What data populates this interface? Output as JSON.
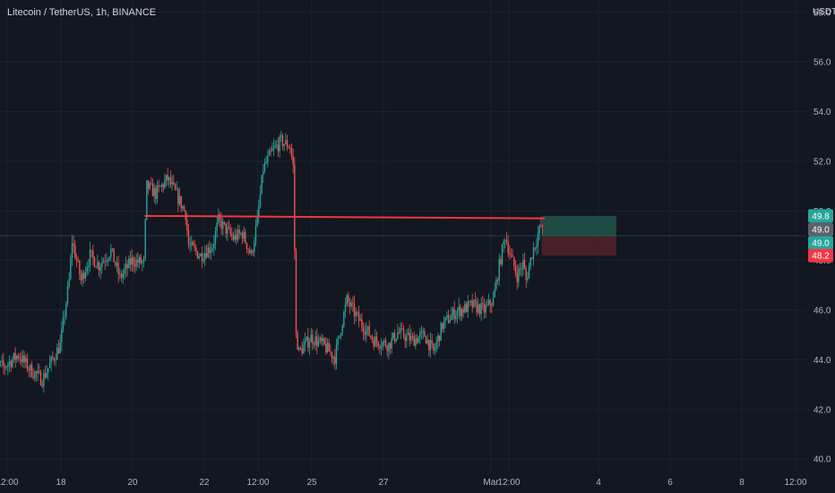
{
  "header": {
    "symbol_title": "Litecoin / TetherUS, 1h, BINANCE",
    "unit": "USDT"
  },
  "colors": {
    "background": "#131722",
    "grid": "#1e222d",
    "up": "#26a69a",
    "down": "#ef5350",
    "trendline": "#f23645",
    "target_zone": "#1d4d44",
    "stop_zone": "#4a2129",
    "axis_text": "#b2b5be",
    "current_price_badge": "#5d606b"
  },
  "chart_data": {
    "type": "candlestick",
    "title": "Litecoin / TetherUS, 1h, BINANCE",
    "ylabel": "USDT",
    "ylim": [
      39.5,
      58.5
    ],
    "y_ticks": [
      "40.0",
      "42.0",
      "44.0",
      "46.0",
      "48.0",
      "50.0",
      "52.0",
      "54.0",
      "56.0",
      "58.0"
    ],
    "x_ticks": [
      "12:00",
      "18",
      "20",
      "22",
      "12:00",
      "25",
      "27",
      "Mar",
      "12:00",
      "4",
      "6",
      "8",
      "12:00"
    ],
    "grid": true,
    "ohlc_anchors": [
      [
        "16 00:00",
        44.0
      ],
      [
        "16 10:00",
        43.7
      ],
      [
        "16 20:00",
        44.2
      ],
      [
        "17 04:00",
        43.6
      ],
      [
        "17 12:00",
        43.2
      ],
      [
        "17 18:00",
        43.9
      ],
      [
        "18 00:00",
        44.6
      ],
      [
        "18 06:00",
        47.2
      ],
      [
        "18 08:00",
        48.8
      ],
      [
        "18 14:00",
        47.2
      ],
      [
        "18 20:00",
        48.2
      ],
      [
        "19 02:00",
        47.8
      ],
      [
        "19 10:00",
        48.4
      ],
      [
        "19 16:00",
        47.3
      ],
      [
        "20 00:00",
        48.0
      ],
      [
        "20 08:00",
        47.9
      ],
      [
        "20 10:00",
        51.0
      ],
      [
        "20 16:00",
        50.7
      ],
      [
        "21 00:00",
        51.3
      ],
      [
        "21 08:00",
        50.4
      ],
      [
        "21 12:00",
        49.9
      ],
      [
        "21 14:00",
        48.6
      ],
      [
        "21 22:00",
        48.2
      ],
      [
        "22 06:00",
        48.6
      ],
      [
        "22 10:00",
        49.6
      ],
      [
        "22 20:00",
        48.9
      ],
      [
        "23 02:00",
        49.1
      ],
      [
        "23 08:00",
        48.2
      ],
      [
        "23 12:00",
        49.6
      ],
      [
        "23 16:00",
        51.7
      ],
      [
        "23 22:00",
        52.4
      ],
      [
        "24 04:00",
        52.8
      ],
      [
        "24 10:00",
        52.6
      ],
      [
        "24 12:00",
        51.8
      ],
      [
        "24 14:00",
        45.0
      ],
      [
        "24 16:00",
        44.3
      ],
      [
        "25 00:00",
        44.9
      ],
      [
        "25 08:00",
        44.6
      ],
      [
        "25 16:00",
        44.1
      ],
      [
        "25 20:00",
        45.3
      ],
      [
        "26 00:00",
        46.4
      ],
      [
        "26 08:00",
        45.6
      ],
      [
        "26 18:00",
        44.8
      ],
      [
        "27 04:00",
        44.6
      ],
      [
        "27 10:00",
        45.1
      ],
      [
        "27 20:00",
        44.8
      ],
      [
        "28 04:00",
        45.0
      ],
      [
        "28 10:00",
        44.3
      ],
      [
        "28 16:00",
        45.4
      ],
      [
        "29 00:00",
        45.9
      ],
      [
        "29 12:00",
        46.2
      ],
      [
        "29 20:00",
        46.0
      ],
      [
        "Mar 1 02:00",
        46.4
      ],
      [
        "Mar 1 06:00",
        47.8
      ],
      [
        "Mar 1 10:00",
        49.0
      ],
      [
        "Mar 1 14:00",
        48.1
      ],
      [
        "Mar 1 18:00",
        47.4
      ],
      [
        "Mar 1 22:00",
        47.9
      ],
      [
        "Mar 2 00:00",
        47.2
      ],
      [
        "Mar 2 04:00",
        48.3
      ],
      [
        "Mar 2 10:00",
        49.4
      ]
    ],
    "annotations": {
      "horizontal_trendline": {
        "from": "20 08:00",
        "to": "Mar 2 12:00",
        "y": [
          49.8,
          49.7
        ]
      },
      "current_price_line": 49.0,
      "long_position": {
        "entry": 49.0,
        "target": 49.8,
        "stop": 48.2,
        "from": "Mar 2 10:00",
        "to": "Mar 4 12:00"
      }
    },
    "price_labels": {
      "target": "49.8",
      "current": "49.0",
      "entry": "49.0",
      "stop": "48.2"
    }
  }
}
